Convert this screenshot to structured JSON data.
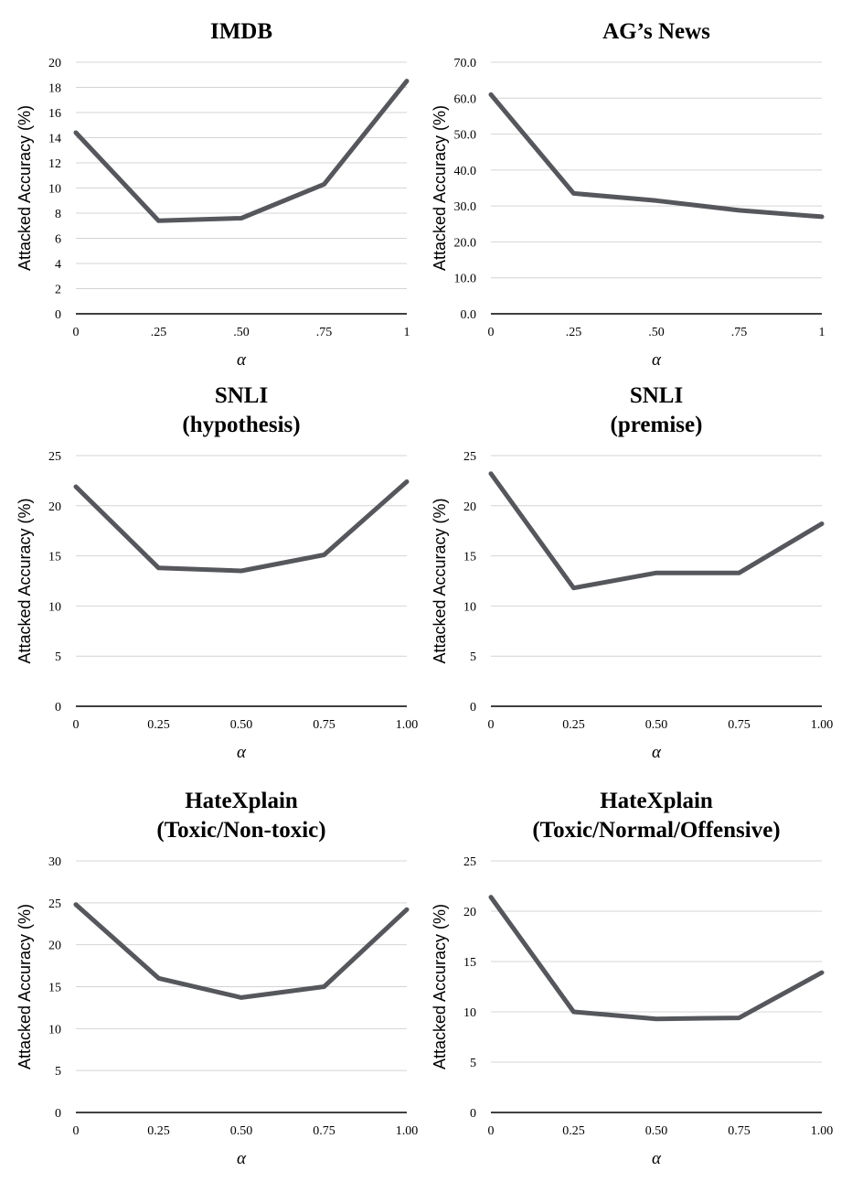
{
  "chart_data": [
    {
      "type": "line",
      "title": [
        "IMDB"
      ],
      "xlabel": "α",
      "ylabel": "Attacked Accuracy (%)",
      "x_tick_labels": [
        "0",
        ".25",
        ".50",
        ".75",
        "1"
      ],
      "y_ticks": [
        0,
        2,
        4,
        6,
        8,
        10,
        12,
        14,
        16,
        18,
        20
      ],
      "y_tick_labels": [
        "0",
        "2",
        "4",
        "6",
        "8",
        "10",
        "12",
        "14",
        "16",
        "18",
        "20"
      ],
      "ylim": [
        0,
        20
      ],
      "grid": true,
      "legend": "none",
      "series": [
        {
          "color": "#55575c",
          "values": [
            14.4,
            7.4,
            7.6,
            10.3,
            18.5
          ]
        }
      ]
    },
    {
      "type": "line",
      "title": [
        "AG’s News"
      ],
      "xlabel": "α",
      "ylabel": "Attacked Accuracy (%)",
      "x_tick_labels": [
        "0",
        ".25",
        ".50",
        ".75",
        "1"
      ],
      "y_ticks": [
        0,
        10,
        20,
        30,
        40,
        50,
        60,
        70
      ],
      "y_tick_labels": [
        "0.0",
        "10.0",
        "20.0",
        "30.0",
        "40.0",
        "50.0",
        "60.0",
        "70.0"
      ],
      "ylim": [
        0,
        70
      ],
      "grid": true,
      "legend": "none",
      "series": [
        {
          "color": "#55575c",
          "values": [
            61.0,
            33.5,
            31.5,
            28.8,
            27.0
          ]
        }
      ]
    },
    {
      "type": "line",
      "title": [
        "SNLI",
        "(hypothesis)"
      ],
      "xlabel": "α",
      "ylabel": "Attacked Accuracy (%)",
      "x_tick_labels": [
        "0",
        "0.25",
        "0.50",
        "0.75",
        "1.00"
      ],
      "y_ticks": [
        0,
        5,
        10,
        15,
        20,
        25
      ],
      "y_tick_labels": [
        "0",
        "5",
        "10",
        "15",
        "20",
        "25"
      ],
      "ylim": [
        0,
        25
      ],
      "grid": true,
      "legend": "none",
      "series": [
        {
          "color": "#55575c",
          "values": [
            21.9,
            13.8,
            13.5,
            15.1,
            22.4
          ]
        }
      ]
    },
    {
      "type": "line",
      "title": [
        "SNLI",
        "(premise)"
      ],
      "xlabel": "α",
      "ylabel": "Attacked Accuracy (%)",
      "x_tick_labels": [
        "0",
        "0.25",
        "0.50",
        "0.75",
        "1.00"
      ],
      "y_ticks": [
        0,
        5,
        10,
        15,
        20,
        25
      ],
      "y_tick_labels": [
        "0",
        "5",
        "10",
        "15",
        "20",
        "25"
      ],
      "ylim": [
        0,
        25
      ],
      "grid": true,
      "legend": "none",
      "series": [
        {
          "color": "#55575c",
          "values": [
            23.2,
            11.8,
            13.3,
            13.3,
            18.2
          ]
        }
      ]
    },
    {
      "type": "line",
      "title": [
        "HateXplain",
        "(Toxic/Non-toxic)"
      ],
      "xlabel": "α",
      "ylabel": "Attacked Accuracy (%)",
      "x_tick_labels": [
        "0",
        "0.25",
        "0.50",
        "0.75",
        "1.00"
      ],
      "y_ticks": [
        0,
        5,
        10,
        15,
        20,
        25,
        30
      ],
      "y_tick_labels": [
        "0",
        "5",
        "10",
        "15",
        "20",
        "25",
        "30"
      ],
      "ylim": [
        0,
        30
      ],
      "grid": true,
      "legend": "none",
      "series": [
        {
          "color": "#55575c",
          "values": [
            24.8,
            16.0,
            13.7,
            15.0,
            24.2
          ]
        }
      ]
    },
    {
      "type": "line",
      "title": [
        "HateXplain",
        "(Toxic/Normal/Offensive)"
      ],
      "xlabel": "α",
      "ylabel": "Attacked Accuracy (%)",
      "x_tick_labels": [
        "0",
        "0.25",
        "0.50",
        "0.75",
        "1.00"
      ],
      "y_ticks": [
        0,
        5,
        10,
        15,
        20,
        25
      ],
      "y_tick_labels": [
        "0",
        "5",
        "10",
        "15",
        "20",
        "25"
      ],
      "ylim": [
        0,
        25
      ],
      "grid": true,
      "legend": "none",
      "series": [
        {
          "color": "#55575c",
          "values": [
            21.4,
            10.0,
            9.3,
            9.4,
            13.9
          ]
        }
      ]
    }
  ]
}
